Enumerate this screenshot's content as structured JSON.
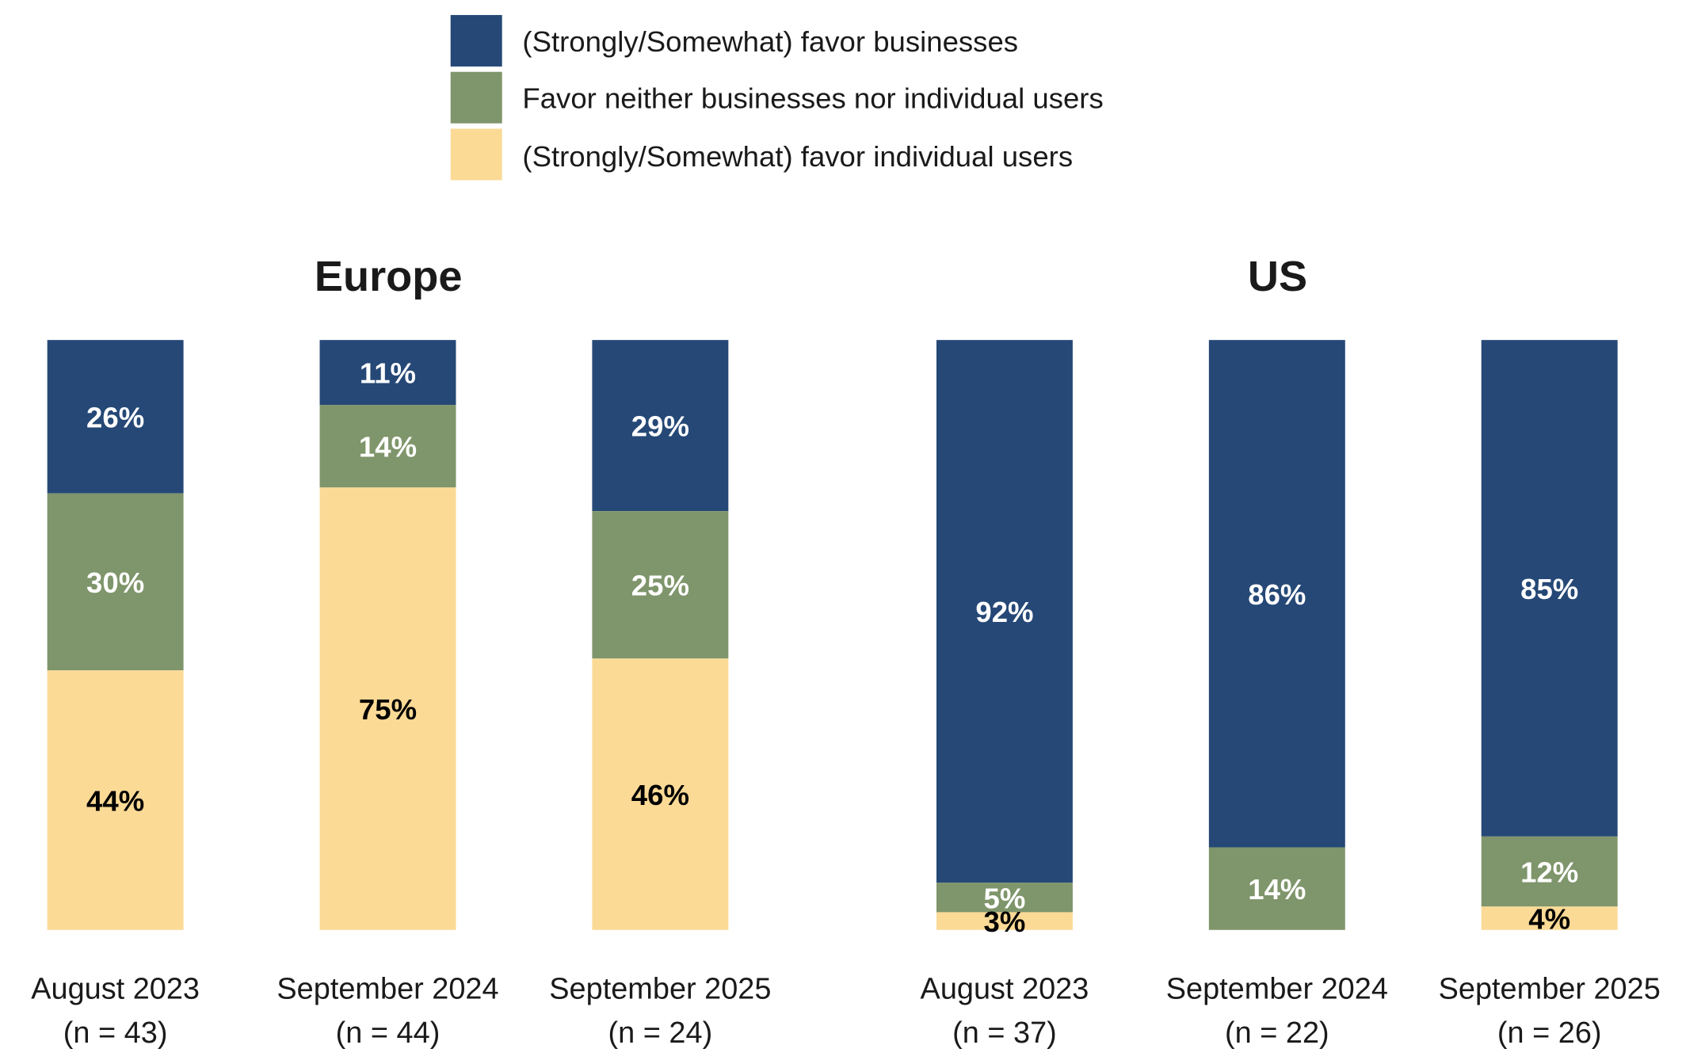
{
  "chart_data": {
    "type": "bar",
    "stacked": true,
    "normalized_percent": true,
    "legend_position": "top",
    "grid": false,
    "series_colors": [
      "#254876",
      "#7f956b",
      "#fbda96"
    ],
    "legend": [
      "(Strongly/Somewhat) favor businesses",
      "Favor neither businesses nor individual users",
      "(Strongly/Somewhat) favor individual users"
    ],
    "panels": [
      {
        "title": "Europe",
        "categories": [
          {
            "label": "August 2023",
            "n": "(n = 43)"
          },
          {
            "label": "September 2024",
            "n": "(n = 44)"
          },
          {
            "label": "September 2025",
            "n": "(n = 24)"
          }
        ],
        "series": [
          {
            "name": "(Strongly/Somewhat) favor businesses",
            "values": [
              26,
              11,
              29
            ]
          },
          {
            "name": "Favor neither businesses nor individual users",
            "values": [
              30,
              14,
              25
            ]
          },
          {
            "name": "(Strongly/Somewhat) favor individual users",
            "values": [
              44,
              75,
              46
            ]
          }
        ]
      },
      {
        "title": "US",
        "categories": [
          {
            "label": "August 2023",
            "n": "(n = 37)"
          },
          {
            "label": "September 2024",
            "n": "(n = 22)"
          },
          {
            "label": "September 2025",
            "n": "(n = 26)"
          }
        ],
        "series": [
          {
            "name": "(Strongly/Somewhat) favor businesses",
            "values": [
              92,
              86,
              85
            ]
          },
          {
            "name": "Favor neither businesses nor individual users",
            "values": [
              5,
              14,
              12
            ]
          },
          {
            "name": "(Strongly/Somewhat) favor individual users",
            "values": [
              3,
              0,
              4
            ]
          }
        ]
      }
    ]
  }
}
